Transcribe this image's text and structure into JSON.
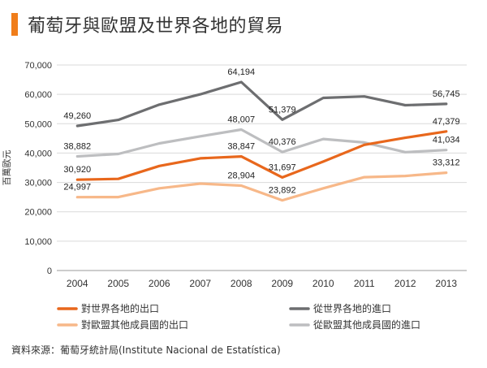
{
  "header": {
    "title": "葡萄牙與歐盟及世界各地的貿易",
    "accent_color": "#F07D1A"
  },
  "source": "資料來源：葡萄牙統計局(Institute Nacional de Estatística)",
  "chart_data": {
    "type": "line",
    "title": "葡萄牙與歐盟及世界各地的貿易",
    "ylabel": "百萬歐元",
    "xlabel": "",
    "ylim": [
      0,
      70000
    ],
    "yticks": [
      0,
      10000,
      20000,
      30000,
      40000,
      50000,
      60000,
      70000
    ],
    "ytick_labels": [
      "0",
      "10,000",
      "20,000",
      "30,000",
      "40,000",
      "50,000",
      "60,000",
      "70,000"
    ],
    "grid": true,
    "categories": [
      "2004",
      "2005",
      "2006",
      "2007",
      "2008",
      "2009",
      "2010",
      "2011",
      "2012",
      "2013"
    ],
    "series": [
      {
        "name": "從世界各地的進口",
        "color": "#6D6E70",
        "values": [
          49260,
          51300,
          56500,
          60000,
          64194,
          51379,
          58800,
          59300,
          56300,
          56745
        ],
        "labels": {
          "0": "49,260",
          "4": "64,194",
          "5": "51,379",
          "9": "56,745"
        },
        "label_pos": {
          "0": "above",
          "4": "above",
          "5": "above",
          "9": "above"
        }
      },
      {
        "name": "從歐盟其他成員國的進口",
        "color": "#BDBEC0",
        "values": [
          38882,
          39700,
          43300,
          45700,
          48007,
          40376,
          44800,
          43600,
          40300,
          41034
        ],
        "labels": {
          "0": "38,882",
          "4": "48,007",
          "5": "40,376",
          "9": "41,034"
        },
        "label_pos": {
          "0": "above",
          "4": "above",
          "5": "above",
          "9": "above"
        }
      },
      {
        "name": "對世界各地的出口",
        "color": "#E8671C",
        "values": [
          30920,
          31200,
          35600,
          38200,
          38847,
          31697,
          37100,
          42800,
          45200,
          47379
        ],
        "labels": {
          "0": "30,920",
          "4": "38,847",
          "5": "31,697",
          "9": "47,379"
        },
        "label_pos": {
          "0": "above",
          "4": "above",
          "5": "above",
          "9": "above"
        }
      },
      {
        "name": "對歐盟其他成員國的出口",
        "color": "#F7B889",
        "values": [
          24997,
          25000,
          28000,
          29600,
          28904,
          23892,
          28000,
          31800,
          32200,
          33312
        ],
        "labels": {
          "0": "24,997",
          "4": "28,904",
          "5": "23,892",
          "9": "33,312"
        },
        "label_pos": {
          "0": "above",
          "4": "above",
          "5": "above",
          "9": "above"
        }
      }
    ],
    "legend": {
      "placement": "bottom",
      "entries": [
        "對世界各地的出口",
        "從世界各地的進口",
        "對歐盟其他成員國的出口",
        "從歐盟其他成員國的進口"
      ]
    }
  }
}
